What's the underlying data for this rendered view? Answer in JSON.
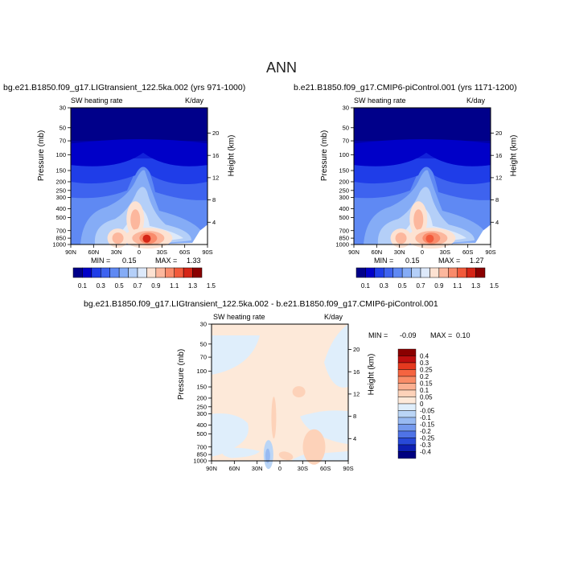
{
  "figure": {
    "title": "ANN"
  },
  "colors": {
    "cbar_levels_12": [
      "#00008a",
      "#0000c8",
      "#1f3de8",
      "#3e63ef",
      "#5f89f3",
      "#85acf6",
      "#b4cff8",
      "#dde9fa",
      "#fde2d2",
      "#fcb79d",
      "#f98b6b",
      "#f25a3b",
      "#d52516",
      "#8a0000"
    ],
    "diff_levels": [
      "#8a0000",
      "#be0f0f",
      "#e5391f",
      "#f56440",
      "#f98c67",
      "#fbb092",
      "#fdd2b9",
      "#fde9d9",
      "#dfeefb",
      "#bad5f6",
      "#98baf2",
      "#7499ed",
      "#4f73e6",
      "#2849d8",
      "#0d1fb2",
      "#000080"
    ]
  },
  "panels": [
    {
      "title": "bg.e21.B1850.f09_g17.LIGtransient_122.5ka.002 (yrs 971-1000)",
      "variable": "SW heating rate",
      "units": "K/day",
      "min_label": "MIN =",
      "min_value": "0.15",
      "max_label": "MAX =",
      "max_value": "1.33"
    },
    {
      "title": "b.e21.B1850.f09_g17.CMIP6-piControl.001 (yrs 1171-1200)",
      "variable": "SW heating rate",
      "units": "K/day",
      "min_label": "MIN =",
      "min_value": "0.15",
      "max_label": "MAX =",
      "max_value": "1.27"
    },
    {
      "title": "bg.e21.B1850.f09_g17.LIGtransient_122.5ka.002 - b.e21.B1850.f09_g17.CMIP6-piControl.001",
      "variable": "SW heating rate",
      "units": "K/day",
      "min_label": "MIN =",
      "min_value": "-0.09",
      "max_label": "MAX =",
      "max_value": "0.10"
    }
  ],
  "axes": {
    "ylabel": "Pressure (mb)",
    "ylabel_right": "Height (km)",
    "pressure_ticks": [
      "30",
      "50",
      "70",
      "100",
      "150",
      "200",
      "250",
      "300",
      "400",
      "500",
      "700",
      "850",
      "1000"
    ],
    "height_ticks": [
      "20",
      "16",
      "12",
      "8",
      "4"
    ],
    "lat_ticks": [
      "90N",
      "60N",
      "30N",
      "0",
      "30S",
      "60S",
      "90S"
    ]
  },
  "colorbar_main": {
    "labels": [
      "0.1",
      "0.3",
      "0.5",
      "0.7",
      "0.9",
      "1.1",
      "1.3",
      "1.5"
    ]
  },
  "colorbar_diff": {
    "labels": [
      "0.4",
      "0.3",
      "0.25",
      "0.2",
      "0.15",
      "0.1",
      "0.05",
      "0",
      "-0.05",
      "-0.1",
      "-0.15",
      "-0.2",
      "-0.25",
      "-0.3",
      "-0.4"
    ]
  },
  "chart_data": [
    {
      "type": "heatmap",
      "title": "bg.e21.B1850.f09_g17.LIGtransient_122.5ka.002 (yrs 971-1000)",
      "subtitle": "SW heating rate",
      "units": "K/day",
      "xlabel": "",
      "ylabel": "Pressure (mb)",
      "ylabel_right": "Height (km)",
      "x_ticks": [
        "90N",
        "60N",
        "30N",
        "0",
        "30S",
        "60S",
        "90S"
      ],
      "y_ticks": [
        "30",
        "50",
        "70",
        "100",
        "150",
        "200",
        "250",
        "300",
        "400",
        "500",
        "700",
        "850",
        "1000"
      ],
      "ylim": [
        1000,
        30
      ],
      "yscale": "log",
      "min": 0.15,
      "max": 1.33,
      "levels": [
        0.1,
        0.2,
        0.3,
        0.4,
        0.5,
        0.6,
        0.7,
        0.8,
        0.9,
        1.0,
        1.1,
        1.2,
        1.3,
        1.4,
        1.5
      ],
      "features": [
        {
          "lat": 5,
          "pressure": 530,
          "value": 0.95
        },
        {
          "lat": -12,
          "pressure": 850,
          "value": 1.3
        },
        {
          "lat": 20,
          "pressure": 840,
          "value": 1.0
        }
      ]
    },
    {
      "type": "heatmap",
      "title": "b.e21.B1850.f09_g17.CMIP6-piControl.001 (yrs 1171-1200)",
      "subtitle": "SW heating rate",
      "units": "K/day",
      "xlabel": "",
      "ylabel": "Pressure (mb)",
      "ylabel_right": "Height (km)",
      "x_ticks": [
        "90N",
        "60N",
        "30N",
        "0",
        "30S",
        "60S",
        "90S"
      ],
      "y_ticks": [
        "30",
        "50",
        "70",
        "100",
        "150",
        "200",
        "250",
        "300",
        "400",
        "500",
        "700",
        "850",
        "1000"
      ],
      "ylim": [
        1000,
        30
      ],
      "yscale": "log",
      "min": 0.15,
      "max": 1.27,
      "levels": [
        0.1,
        0.2,
        0.3,
        0.4,
        0.5,
        0.6,
        0.7,
        0.8,
        0.9,
        1.0,
        1.1,
        1.2,
        1.3,
        1.4,
        1.5
      ],
      "features": [
        {
          "lat": 5,
          "pressure": 530,
          "value": 0.9
        },
        {
          "lat": -12,
          "pressure": 850,
          "value": 1.25
        },
        {
          "lat": 20,
          "pressure": 840,
          "value": 1.0
        }
      ]
    },
    {
      "type": "heatmap",
      "title": "bg.e21.B1850.f09_g17.LIGtransient_122.5ka.002 - b.e21.B1850.f09_g17.CMIP6-piControl.001",
      "subtitle": "SW heating rate",
      "units": "K/day",
      "xlabel": "",
      "ylabel": "Pressure (mb)",
      "ylabel_right": "Height (km)",
      "x_ticks": [
        "90N",
        "60N",
        "30N",
        "0",
        "30S",
        "60S",
        "90S"
      ],
      "y_ticks": [
        "30",
        "50",
        "70",
        "100",
        "150",
        "200",
        "250",
        "300",
        "400",
        "500",
        "700",
        "850",
        "1000"
      ],
      "ylim": [
        1000,
        30
      ],
      "yscale": "log",
      "min": -0.09,
      "max": 0.1,
      "levels": [
        -0.4,
        -0.3,
        -0.25,
        -0.2,
        -0.15,
        -0.1,
        -0.05,
        0,
        0.05,
        0.1,
        0.15,
        0.2,
        0.25,
        0.3,
        0.4
      ]
    }
  ]
}
